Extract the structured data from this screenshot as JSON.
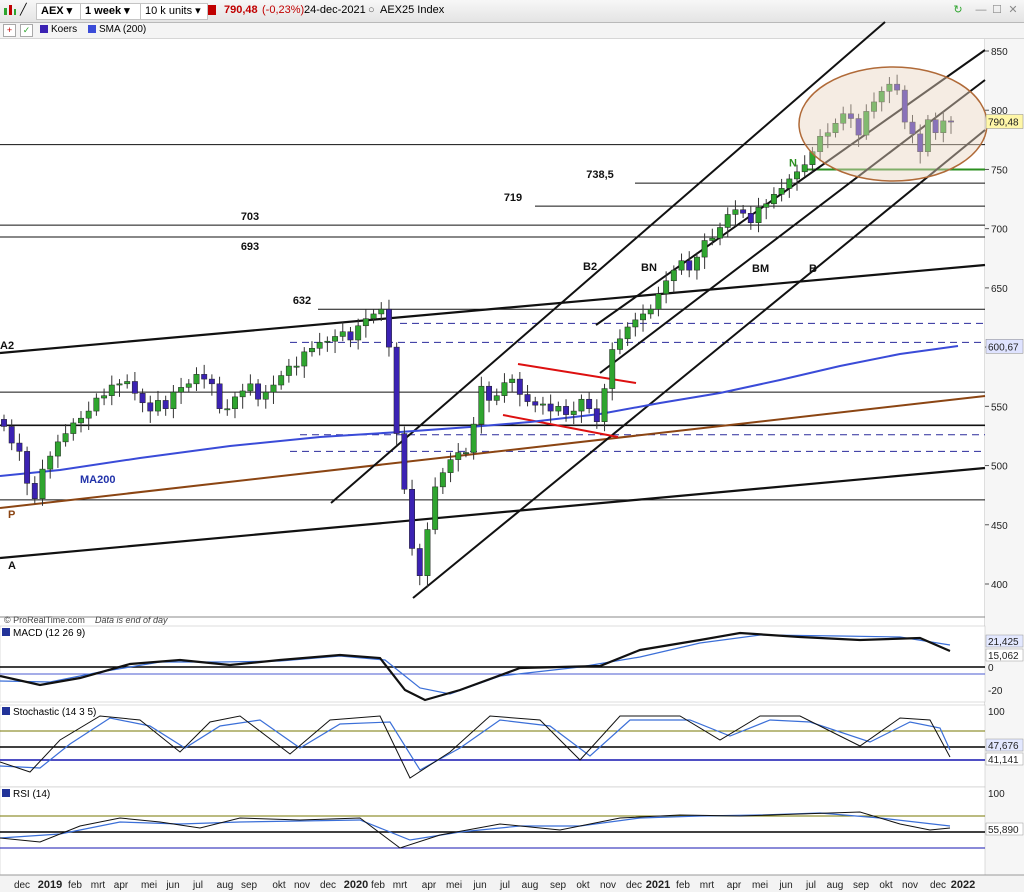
{
  "toolbar": {
    "symbol": "AEX",
    "period": "1 week",
    "units": "10 k units",
    "price": "790,48",
    "change": "(-0,23%)",
    "date": "24-dec-2021",
    "index_name": "AEX25 Index"
  },
  "legend": {
    "series_price": "Koers",
    "series_sma": "SMA (200)"
  },
  "copyright": "© ProRealTime.com",
  "data_note": "Data is end of day",
  "colors": {
    "up": "#2fa52f",
    "down": "#3b22b3",
    "sma": "#3a4bd8",
    "trend_brown": "#8b4513",
    "red": "#dd1010",
    "green": "#2b8f1f",
    "ellipse_fill": "#e9d4c2",
    "ellipse_stroke": "#b06a38",
    "dash": "#2b2b9c"
  },
  "chart_data": [
    {
      "type": "candlestick",
      "title": "",
      "series": [
        {
          "name": "Koers"
        },
        {
          "name": "SMA (200)"
        }
      ],
      "y_ticks": [
        "850",
        "800",
        "750",
        "700",
        "650",
        "600",
        "550",
        "500",
        "450",
        "400"
      ],
      "ylim": [
        383,
        862
      ],
      "x_ticks": [
        "dec",
        "2019",
        "feb",
        "mrt",
        "apr",
        "mei",
        "jun",
        "jul",
        "aug",
        "sep",
        "okt",
        "nov",
        "dec",
        "2020",
        "feb",
        "mrt",
        "apr",
        "mei",
        "jun",
        "jul",
        "aug",
        "sep",
        "okt",
        "nov",
        "dec",
        "2021",
        "feb",
        "mrt",
        "apr",
        "mei",
        "jun",
        "jul",
        "aug",
        "sep",
        "okt",
        "nov",
        "dec",
        "2022"
      ],
      "last_price_label": "790,48",
      "sma_label": "600,67",
      "sma_line_label": "MA200",
      "closes_approx": [
        533,
        519,
        512,
        485,
        472,
        497,
        508,
        520,
        527,
        536,
        540,
        546,
        557,
        559,
        568,
        569,
        571,
        561,
        553,
        546,
        555,
        548,
        562,
        566,
        569,
        577,
        573,
        569,
        548,
        548,
        558,
        563,
        569,
        556,
        562,
        568,
        576,
        584,
        584,
        596,
        599,
        604,
        605,
        609,
        613,
        606,
        618,
        624,
        628,
        632,
        600,
        527,
        480,
        430,
        407,
        446,
        482,
        494,
        505,
        511,
        511,
        535,
        567,
        555,
        559,
        570,
        573,
        560,
        554,
        551,
        552,
        546,
        550,
        543,
        546,
        556,
        548,
        537,
        565,
        598,
        607,
        617,
        623,
        628,
        632,
        645,
        656,
        665,
        673,
        665,
        676,
        690,
        692,
        701,
        712,
        716,
        713,
        705,
        718,
        721,
        729,
        734,
        742,
        748,
        754,
        765,
        778,
        781,
        789,
        797,
        793,
        779,
        799,
        807,
        816,
        822,
        817,
        790,
        780,
        765,
        792,
        781,
        791,
        790
      ],
      "horizontal_levels": [
        {
          "label": "738,5",
          "value": 738.5
        },
        {
          "label": "719",
          "value": 719
        },
        {
          "label": "703",
          "value": 703
        },
        {
          "label": "693",
          "value": 693
        },
        {
          "label": "632",
          "value": 632
        },
        {
          "label": "N",
          "value": 750
        }
      ],
      "trendline_labels": [
        "A2",
        "B2",
        "BN",
        "BM",
        "B",
        "P",
        "A"
      ]
    },
    {
      "type": "line",
      "title": "MACD (12 26 9)",
      "y_ticks": [
        "0",
        "-20"
      ],
      "last_values": [
        "21,425",
        "15,062"
      ]
    },
    {
      "type": "line",
      "title": "Stochastic (14 3 5)",
      "y_ticks": [
        "100"
      ],
      "last_values": [
        "47,676",
        "41,141"
      ]
    },
    {
      "type": "line",
      "title": "RSI (14)",
      "y_ticks": [
        "100"
      ],
      "last_values": [
        "55,890"
      ]
    }
  ]
}
